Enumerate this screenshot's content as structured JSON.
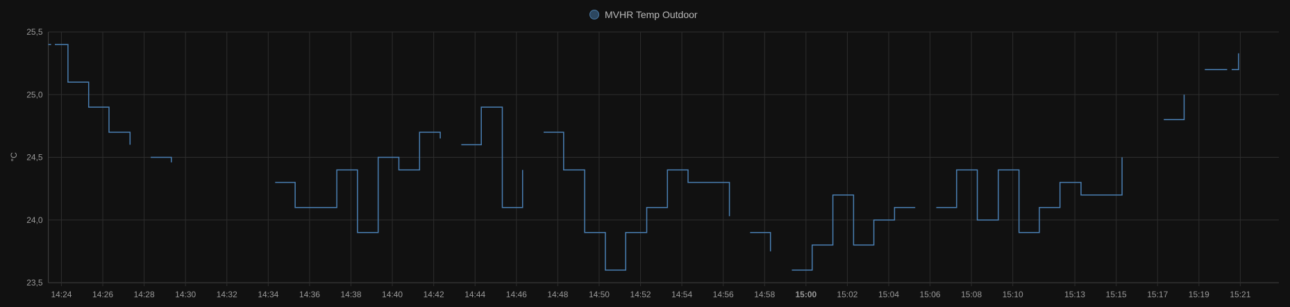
{
  "chart_data": {
    "type": "line",
    "step": true,
    "legend": {
      "position": "top",
      "entries": [
        "MVHR Temp Outdoor"
      ]
    },
    "ylabel": "°C",
    "xlabel": "",
    "ylim": [
      23.5,
      25.5
    ],
    "xlim": [
      "14:23:22",
      "15:22:52"
    ],
    "grid": true,
    "yticks": [
      "23,5",
      "24,0",
      "24,5",
      "25,0",
      "25,5"
    ],
    "ytick_values": [
      23.5,
      24.0,
      24.5,
      25.0,
      25.5
    ],
    "xticks": [
      {
        "time": "14:24",
        "label": "14:24"
      },
      {
        "time": "14:26",
        "label": "14:26"
      },
      {
        "time": "14:28",
        "label": "14:28"
      },
      {
        "time": "14:30",
        "label": "14:30"
      },
      {
        "time": "14:32",
        "label": "14:32"
      },
      {
        "time": "14:34",
        "label": "14:34"
      },
      {
        "time": "14:36",
        "label": "14:36"
      },
      {
        "time": "14:38",
        "label": "14:38"
      },
      {
        "time": "14:40",
        "label": "14:40"
      },
      {
        "time": "14:42",
        "label": "14:42"
      },
      {
        "time": "14:44",
        "label": "14:44"
      },
      {
        "time": "14:46",
        "label": "14:46"
      },
      {
        "time": "14:48",
        "label": "14:48"
      },
      {
        "time": "14:50",
        "label": "14:50"
      },
      {
        "time": "14:52",
        "label": "14:52"
      },
      {
        "time": "14:54",
        "label": "14:54"
      },
      {
        "time": "14:56",
        "label": "14:56"
      },
      {
        "time": "14:58",
        "label": "14:58"
      },
      {
        "time": "15:00",
        "label": "15:00",
        "bold": true
      },
      {
        "time": "15:02",
        "label": "15:02"
      },
      {
        "time": "15:04",
        "label": "15:04"
      },
      {
        "time": "15:06",
        "label": "15:06"
      },
      {
        "time": "15:08",
        "label": "15:08"
      },
      {
        "time": "15:10",
        "label": "15:10"
      },
      {
        "time": "15:13",
        "label": "15:13"
      },
      {
        "time": "15:15",
        "label": "15:15"
      },
      {
        "time": "15:17",
        "label": "15:17"
      },
      {
        "time": "15:19",
        "label": "15:19"
      },
      {
        "time": "15:21",
        "label": "15:21"
      }
    ],
    "series": [
      {
        "name": "MVHR Temp Outdoor",
        "color": "#4a80b4",
        "segments": [
          [
            [
              "14:23:22",
              25.4
            ],
            [
              "14:23:30",
              25.4
            ]
          ],
          [
            [
              "14:23:41",
              25.4
            ],
            [
              "14:24:19",
              25.1
            ],
            [
              "14:25:19",
              24.9
            ],
            [
              "14:26:18",
              24.7
            ],
            [
              "14:27:19",
              24.6
            ]
          ],
          [
            [
              "14:28:19",
              24.5
            ],
            [
              "14:29:19",
              24.46
            ]
          ],
          [
            [
              "14:34:20",
              24.3
            ],
            [
              "14:35:18",
              24.1
            ],
            [
              "14:37:19",
              24.4
            ],
            [
              "14:38:19",
              23.9
            ],
            [
              "14:39:19",
              24.5
            ],
            [
              "14:40:19",
              24.4
            ],
            [
              "14:41:19",
              24.7
            ],
            [
              "14:42:19",
              24.65
            ]
          ],
          [
            [
              "14:43:20",
              24.6
            ],
            [
              "14:44:18",
              24.9
            ],
            [
              "14:45:19",
              24.1
            ],
            [
              "14:46:18",
              24.4
            ]
          ],
          [
            [
              "14:47:19",
              24.7
            ],
            [
              "14:48:17",
              24.4
            ],
            [
              "14:49:18",
              23.9
            ],
            [
              "14:50:18",
              23.6
            ],
            [
              "14:51:17",
              23.9
            ],
            [
              "14:52:18",
              24.1
            ],
            [
              "14:53:18",
              24.4
            ],
            [
              "14:54:18",
              24.3
            ],
            [
              "14:56:18",
              24.03
            ]
          ],
          [
            [
              "14:57:18",
              23.9
            ],
            [
              "14:58:17",
              23.75
            ]
          ],
          [
            [
              "14:59:19",
              23.6
            ],
            [
              "15:00:18",
              23.8
            ],
            [
              "15:01:18",
              24.2
            ],
            [
              "15:02:18",
              23.8
            ],
            [
              "15:03:17",
              24.0
            ],
            [
              "15:04:17",
              24.1
            ],
            [
              "15:05:17",
              24.1
            ]
          ],
          [
            [
              "15:06:18",
              24.1
            ],
            [
              "15:07:17",
              24.4
            ],
            [
              "15:08:17",
              24.0
            ],
            [
              "15:09:18",
              24.4
            ],
            [
              "15:10:18",
              23.9
            ],
            [
              "15:11:17",
              24.1
            ],
            [
              "15:12:17",
              24.3
            ],
            [
              "15:13:18",
              24.2
            ],
            [
              "15:15:17",
              24.5
            ]
          ],
          [
            [
              "15:17:18",
              24.8
            ],
            [
              "15:18:17",
              25.0
            ]
          ],
          [
            [
              "15:19:17",
              25.2
            ],
            [
              "15:20:22",
              25.2
            ]
          ],
          [
            [
              "15:20:35",
              25.2
            ],
            [
              "15:20:55",
              25.33
            ]
          ]
        ]
      }
    ]
  },
  "colors": {
    "background": "#111111",
    "grid": "#2e2e2e",
    "legend_dot": "#2c4760"
  }
}
